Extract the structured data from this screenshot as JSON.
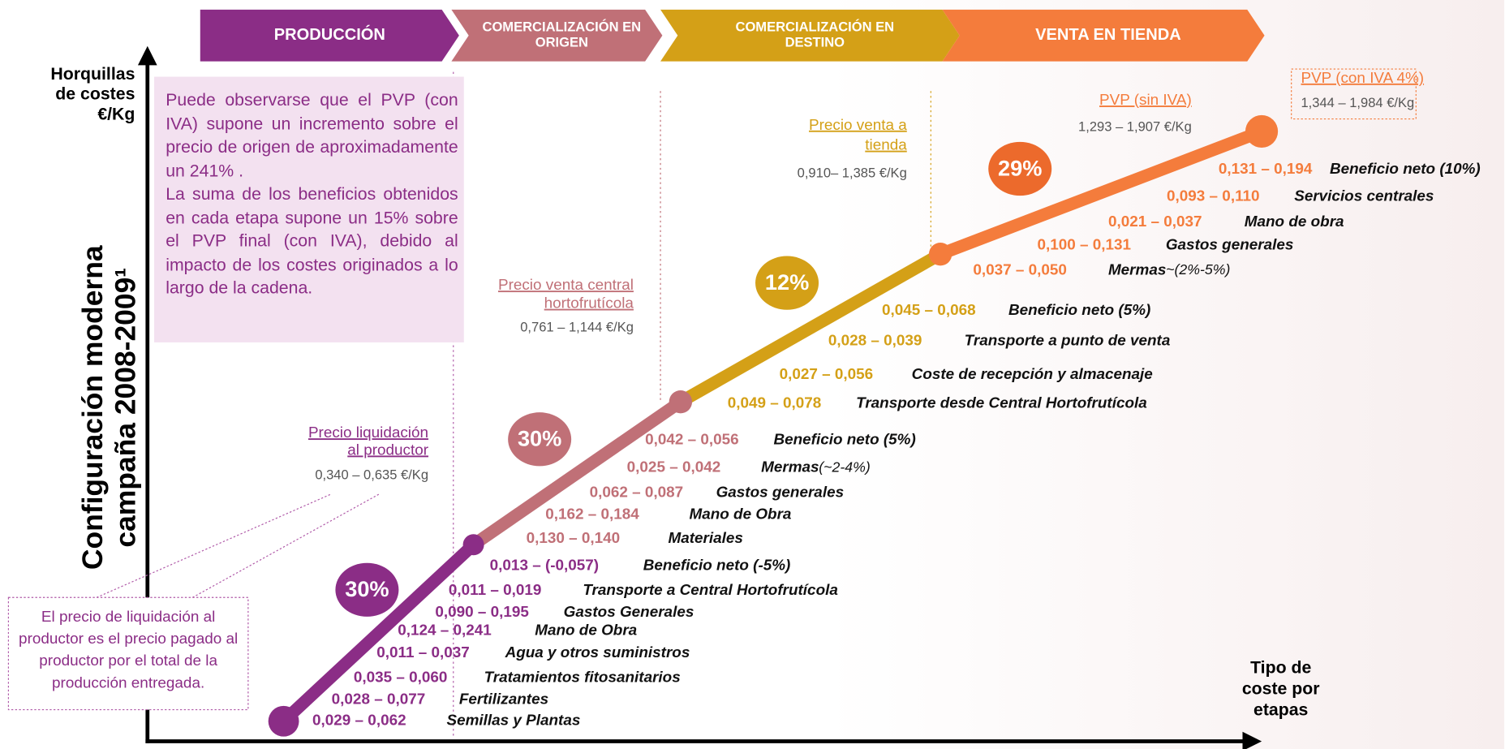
{
  "stages": [
    {
      "label": [
        "PRODUCCIÓN"
      ],
      "costs": [
        {
          "range": "0,029 – 0,062",
          "label": "Semillas y Plantas"
        },
        {
          "range": "0,028 – 0,077",
          "label": "Fertilizantes"
        },
        {
          "range": "0,035 – 0,060",
          "label": "Tratamientos fitosanitarios"
        },
        {
          "range": "0,011 – 0,037",
          "label": "Agua y otros suministros"
        },
        {
          "range": "0,124 – 0,241",
          "label": "Mano de Obra"
        },
        {
          "range": "0,090 – 0,195",
          "label": "Gastos Generales"
        },
        {
          "range": "0,011 – 0,019",
          "label": "Transporte a Central Hortofrutícola"
        },
        {
          "range": "0,013 – (-0,057)",
          "label": "Beneficio neto (-5%)"
        }
      ]
    },
    {
      "label": [
        "COMERCIALIZACIÓN EN",
        "ORIGEN"
      ],
      "costs": [
        {
          "range": "0,130 – 0,140",
          "label": "Materiales"
        },
        {
          "range": "0,162 – 0,184",
          "label": "Mano de Obra"
        },
        {
          "range": "0,062 – 0,087",
          "label": "Gastos generales"
        },
        {
          "range": "0,025 – 0,042",
          "label": "Mermas",
          "note": "(~2-4%)"
        },
        {
          "range": "0,042 – 0,056",
          "label": "Beneficio neto (5%)"
        }
      ]
    },
    {
      "label": [
        "COMERCIALIZACIÓN EN",
        "DESTINO"
      ],
      "costs": [
        {
          "range": "0,049 – 0,078",
          "label": "Transporte desde Central Hortofrutícola"
        },
        {
          "range": "0,027 – 0,056",
          "label": "Coste de recepción y almacenaje"
        },
        {
          "range": "0,028 – 0,039",
          "label": "Transporte a punto de venta"
        },
        {
          "range": "0,045 – 0,068",
          "label": "Beneficio neto (5%)"
        }
      ]
    },
    {
      "label": [
        "VENTA EN TIENDA"
      ],
      "costs": [
        {
          "range": "0,037 – 0,050",
          "label": "Mermas",
          "note": "~(2%-5%)"
        },
        {
          "range": "0,100 – 0,131",
          "label": "Gastos generales"
        },
        {
          "range": "0,021 – 0,037",
          "label": "Mano de obra"
        },
        {
          "range": "0,093 – 0,110",
          "label": "Servicios centrales"
        },
        {
          "range": "0,131 – 0,194",
          "label": "Beneficio neto (10%)"
        }
      ]
    }
  ],
  "axes": {
    "y_label": [
      "Horquillas",
      "de costes",
      "€/Kg"
    ],
    "title": [
      "Configuración moderna",
      "campaña 2008-2009¹"
    ],
    "x_label": [
      "Tipo de",
      "coste por",
      "etapas"
    ]
  },
  "note": [
    "Puede observarse que el PVP (con IVA) supone un incremento sobre el precio de origen de aproximadamente un 241% .",
    "La suma de los beneficios obtenidos en cada etapa supone un 15% sobre el PVP final (con IVA), debido al impacto de los costes originados a lo largo de la cadena."
  ],
  "footnote": "El precio de liquidación al productor es el precio pagado al productor por el total de la producción entregada.",
  "prices": [
    {
      "label": [
        "Precio liquidación",
        "al productor"
      ],
      "range": "0,340 – 0,635 €/Kg"
    },
    {
      "label": [
        "Precio venta central",
        "hortofrutícola"
      ],
      "range": "0,761 – 1,144 €/Kg"
    },
    {
      "label": [
        "Precio venta a",
        "tienda"
      ],
      "range": "0,910– 1,385 €/Kg"
    },
    {
      "label": [
        "PVP (sin IVA)"
      ],
      "range": "1,293 – 1,907 €/Kg"
    },
    {
      "label": [
        "PVP (con IVA 4%)"
      ],
      "range": "1,344 – 1,984 €/Kg"
    }
  ],
  "margins": [
    "30%",
    "30%",
    "12%",
    "29%"
  ]
}
